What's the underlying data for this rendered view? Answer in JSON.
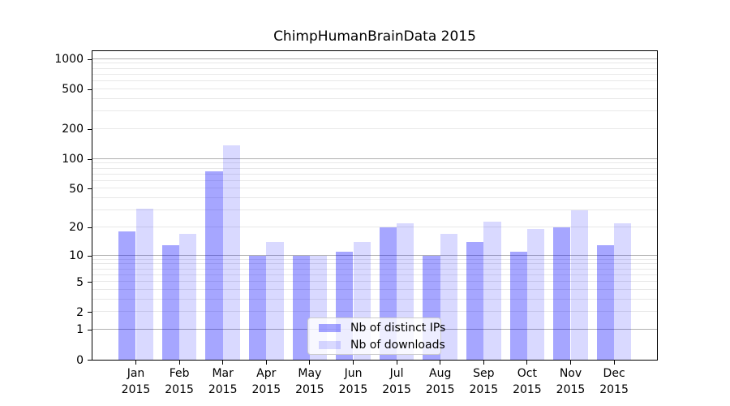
{
  "chart_data": {
    "type": "bar",
    "title": "ChimpHumanBrainData 2015",
    "categories": [
      "Jan",
      "Feb",
      "Mar",
      "Apr",
      "May",
      "Jun",
      "Jul",
      "Aug",
      "Sep",
      "Oct",
      "Nov",
      "Dec"
    ],
    "category_year": "2015",
    "series": [
      {
        "name": "Nb of distinct IPs",
        "color": "rgba(0,0,255,0.35)",
        "values": [
          18,
          13,
          75,
          10,
          10,
          11,
          20,
          10,
          14,
          11,
          20,
          13
        ]
      },
      {
        "name": "Nb of downloads",
        "color": "rgba(0,0,255,0.15)",
        "values": [
          31,
          17,
          137,
          14,
          10,
          14,
          22,
          17,
          23,
          19,
          30,
          22
        ]
      }
    ],
    "yscale": "log1p",
    "ylim": [
      0,
      1000
    ],
    "yticks": [
      0,
      1,
      2,
      5,
      10,
      20,
      50,
      100,
      200,
      500,
      1000
    ],
    "grid": {
      "major_ticks": [
        1,
        10,
        100,
        1000
      ],
      "minor_ticks": [
        2,
        3,
        4,
        5,
        6,
        7,
        8,
        9,
        20,
        30,
        40,
        50,
        60,
        70,
        80,
        90,
        200,
        300,
        400,
        500,
        600,
        700,
        800,
        900
      ],
      "major_color": "#b0b0b0",
      "minor_color": "#e8e8e8"
    },
    "legend_position": "lower center",
    "background_color": "#ffffff",
    "spine_color": "#000000"
  }
}
